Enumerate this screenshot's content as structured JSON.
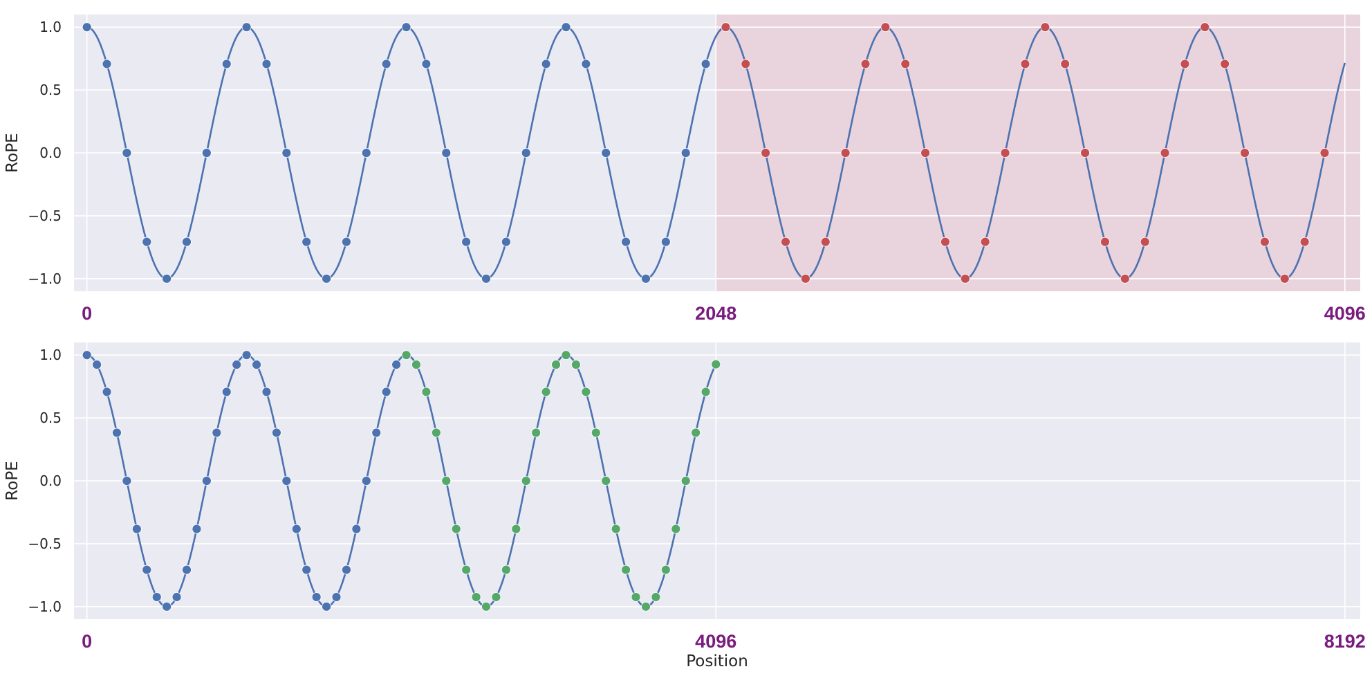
{
  "chart_data": [
    {
      "type": "line",
      "id": "top",
      "ylabel": "RoPE",
      "xlabel": "",
      "xlim": [
        -42,
        4146
      ],
      "ylim": [
        -1.1,
        1.1
      ],
      "x_ticks": [
        {
          "value": 0,
          "label": "0"
        },
        {
          "value": 2048,
          "label": "2048"
        },
        {
          "value": 4096,
          "label": "4096"
        }
      ],
      "y_ticks": [
        {
          "value": 1.0,
          "label": "1.0"
        },
        {
          "value": 0.5,
          "label": "0.5"
        },
        {
          "value": 0.0,
          "label": "0.0"
        },
        {
          "value": -0.5,
          "label": "−0.5"
        },
        {
          "value": -1.0,
          "label": "−1.0"
        }
      ],
      "curve": {
        "function": "cos",
        "period": 520,
        "x_range": [
          0,
          4096
        ],
        "color": "#4c72b0"
      },
      "shaded_region": {
        "x_range": [
          2048,
          4146
        ],
        "color": "#e8a0a8"
      },
      "series": [
        {
          "color": "#4c72b0",
          "x": [
            0,
            65,
            130,
            195,
            260,
            325,
            390,
            455,
            520,
            585,
            650,
            715,
            780,
            845,
            910,
            975,
            1040,
            1105,
            1170,
            1235,
            1300,
            1365,
            1430,
            1495,
            1560,
            1625,
            1690,
            1755,
            1820,
            1885,
            1950,
            2015
          ]
        },
        {
          "color": "#c44e52",
          "x": [
            2080,
            2145,
            2210,
            2275,
            2340,
            2405,
            2470,
            2535,
            2600,
            2665,
            2730,
            2795,
            2860,
            2925,
            2990,
            3055,
            3120,
            3185,
            3250,
            3315,
            3380,
            3445,
            3510,
            3575,
            3640,
            3705,
            3770,
            3835,
            3900,
            3965,
            4030
          ]
        }
      ]
    },
    {
      "type": "line",
      "id": "bottom",
      "ylabel": "RoPE",
      "xlabel": "Position",
      "xlim": [
        -84,
        8292
      ],
      "ylim": [
        -1.1,
        1.1
      ],
      "x_ticks": [
        {
          "value": 0,
          "label": "0"
        },
        {
          "value": 4096,
          "label": "4096"
        },
        {
          "value": 8192,
          "label": "8192"
        }
      ],
      "y_ticks": [
        {
          "value": 1.0,
          "label": "1.0"
        },
        {
          "value": 0.5,
          "label": "0.5"
        },
        {
          "value": 0.0,
          "label": "0.0"
        },
        {
          "value": -0.5,
          "label": "−0.5"
        },
        {
          "value": -1.0,
          "label": "−1.0"
        }
      ],
      "curve": {
        "function": "cos",
        "period": 1040,
        "x_range": [
          0,
          4096
        ],
        "color": "#4c72b0"
      },
      "series": [
        {
          "color": "#4c72b0",
          "x": [
            0,
            65,
            130,
            195,
            260,
            325,
            390,
            455,
            520,
            585,
            650,
            715,
            780,
            845,
            910,
            975,
            1040,
            1105,
            1170,
            1235,
            1300,
            1365,
            1430,
            1495,
            1560,
            1625,
            1690,
            1755,
            1820,
            1885,
            1950,
            2015
          ]
        },
        {
          "color": "#55a868",
          "x": [
            2080,
            2145,
            2210,
            2275,
            2340,
            2405,
            2470,
            2535,
            2600,
            2665,
            2730,
            2795,
            2860,
            2925,
            2990,
            3055,
            3120,
            3185,
            3250,
            3315,
            3380,
            3445,
            3510,
            3575,
            3640,
            3705,
            3770,
            3835,
            3900,
            3965,
            4030,
            4096
          ]
        }
      ]
    }
  ]
}
